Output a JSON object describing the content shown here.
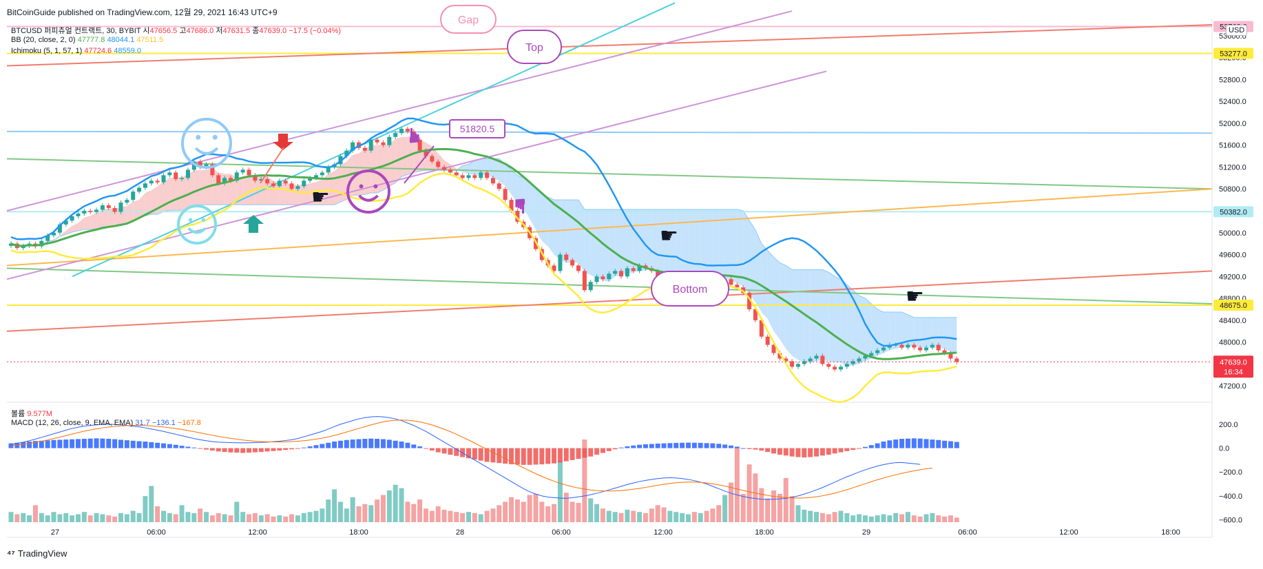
{
  "header": {
    "published_line": "BitCoinGuide published on TradingView.com, 12월 29, 2021 16:43 UTC+9",
    "symbol": "BTCUSD 퍼피츄얼 컨트랙트, 30, BYBIT",
    "o_label": "시",
    "o_value": "47656.5",
    "h_label": "고",
    "h_value": "47686.0",
    "l_label": "저",
    "l_value": "47631.5",
    "c_label": "종",
    "c_value": "47639.0",
    "change": "−17.5 (−0.04%)",
    "bb_label": "BB (20, close, 2, 0)",
    "bb_mid": "47777.8",
    "bb_up": "48044.1",
    "bb_low": "47511.5",
    "ichi_label": "Ichimoku (5, 1, 57, 1)",
    "ichi_a": "47724.6",
    "ichi_b": "48559.0",
    "currency": "USD"
  },
  "lower_legend": {
    "volume_label": "볼륨",
    "volume_value": "9.577M",
    "macd_label": "MACD (12, 26, close, 9, EMA, EMA)",
    "macd_hist": "31.7",
    "macd_line": "−136.1",
    "macd_signal": "−167.8"
  },
  "footer": {
    "brand": "TradingView"
  },
  "annotations": {
    "gap": "Gap",
    "top": "Top",
    "bottom": "Bottom",
    "price_callout": "51820.5"
  },
  "price_tags": [
    {
      "value": "53768.0",
      "color": "#f8bbd0",
      "text_color": "#131722"
    },
    {
      "value": "53277.0",
      "color": "#ffeb3b",
      "text_color": "#131722"
    },
    {
      "value": "50382.0",
      "color": "#b2ebf2",
      "text_color": "#131722"
    },
    {
      "value": "48675.0",
      "color": "#ffeb3b",
      "text_color": "#131722"
    }
  ],
  "last_price": {
    "value": "47639.0",
    "countdown": "16:34",
    "color": "#f23645"
  },
  "colors": {
    "up": "#26a69a",
    "down": "#ef5350",
    "bb_mid": "#4caf50",
    "bb_up": "#2196f3",
    "bb_low": "#ffeb3b",
    "cloud_up": "#bbdefb",
    "cloud_down": "#f8c5c5",
    "vol_up": "#80cbc4",
    "vol_down": "#f5a3a3",
    "macd_up": "#2962ff",
    "macd_down": "#ef5350"
  },
  "chart_data": [
    {
      "type": "candlestick",
      "name": "price",
      "ylim": [
        46900,
        53900
      ],
      "y_ticks": [
        "53600.0",
        "53200.0",
        "52800.0",
        "52400.0",
        "52000.0",
        "51600.0",
        "51200.0",
        "50800.0",
        "50400.0",
        "50000.0",
        "49600.0",
        "49200.0",
        "48800.0",
        "48400.0",
        "48000.0",
        "47600.0",
        "47200.0"
      ],
      "x_ticks": [
        "27",
        "06:00",
        "12:00",
        "18:00",
        "28",
        "06:00",
        "12:00",
        "18:00",
        "29",
        "06:00",
        "12:00",
        "18:00"
      ],
      "start": "2021-12-26T21:00",
      "interval_minutes": 30,
      "close": [
        49800,
        49720,
        49760,
        49800,
        49750,
        49850,
        49950,
        50000,
        50150,
        50220,
        50300,
        50350,
        50400,
        50380,
        50420,
        50500,
        50450,
        50380,
        50550,
        50600,
        50750,
        50820,
        50900,
        50950,
        50920,
        51050,
        51100,
        50980,
        51000,
        51150,
        51300,
        51200,
        51250,
        51050,
        50900,
        51000,
        50950,
        51100,
        51150,
        51050,
        50950,
        50980,
        50900,
        50850,
        50950,
        50900,
        50800,
        50850,
        50950,
        51000,
        51050,
        51100,
        51200,
        51250,
        51400,
        51500,
        51650,
        51550,
        51500,
        51700,
        51650,
        51600,
        51750,
        51820,
        51900,
        51850,
        51700,
        51500,
        51400,
        51300,
        51200,
        51150,
        51100,
        51050,
        51000,
        51050,
        51000,
        51100,
        51000,
        50900,
        50800,
        50600,
        50400,
        50200,
        50100,
        49900,
        49700,
        49500,
        49400,
        49300,
        49600,
        49500,
        49400,
        49300,
        48950,
        49100,
        49200,
        49150,
        49250,
        49300,
        49200,
        49350,
        49300,
        49400,
        49350,
        49300,
        49150,
        49050,
        49100,
        49150,
        49200,
        49250,
        49200,
        49250,
        49200,
        49150,
        49100,
        49150,
        49050,
        49000,
        48900,
        48600,
        48400,
        48100,
        47950,
        47800,
        47700,
        47650,
        47550,
        47600,
        47650,
        47700,
        47750,
        47600,
        47550,
        47500,
        47550,
        47600,
        47650,
        47700,
        47750,
        47800,
        47850,
        47900,
        47950,
        47950,
        47900,
        47950,
        47900,
        47850,
        47900,
        47950,
        47850,
        47800,
        47700,
        47639
      ],
      "volume": [
        0.9,
        0.7,
        0.8,
        0.6,
        1.5,
        0.8,
        0.6,
        0.9,
        0.7,
        0.8,
        0.6,
        0.7,
        0.9,
        0.6,
        0.8,
        0.7,
        0.6,
        0.5,
        0.8,
        0.7,
        1.0,
        0.8,
        2.3,
        3.2,
        1.4,
        1.0,
        0.8,
        0.7,
        1.5,
        0.9,
        0.8,
        1.2,
        0.9,
        0.6,
        0.8,
        0.7,
        0.6,
        1.8,
        0.9,
        0.7,
        0.8,
        0.6,
        0.7,
        0.5,
        0.6,
        0.5,
        0.7,
        0.6,
        0.8,
        0.9,
        1.0,
        1.2,
        2.0,
        2.9,
        1.8,
        1.2,
        2.2,
        1.4,
        1.6,
        1.5,
        2.0,
        2.4,
        2.8,
        3.3,
        3.0,
        1.8,
        1.6,
        2.0,
        1.2,
        1.0,
        1.4,
        1.1,
        1.0,
        0.9,
        0.8,
        0.9,
        0.8,
        0.7,
        1.0,
        1.2,
        1.5,
        1.8,
        2.2,
        2.0,
        1.8,
        2.4,
        2.5,
        1.8,
        1.4,
        1.6,
        5.4,
        2.6,
        1.8,
        1.7,
        7.3,
        2.1,
        1.6,
        1.2,
        1.0,
        0.9,
        0.8,
        1.1,
        1.0,
        0.9,
        0.8,
        1.2,
        1.5,
        1.3,
        1.0,
        0.9,
        0.8,
        0.7,
        0.9,
        0.8,
        1.0,
        1.2,
        1.5,
        2.4,
        3.5,
        6.6,
        2.5,
        5.1,
        4.3,
        3.0,
        2.1,
        2.8,
        2.5,
        3.9,
        2.3,
        1.5,
        1.1,
        1.0,
        0.9,
        0.8,
        0.7,
        0.9,
        1.0,
        0.8,
        0.6,
        0.7,
        0.6,
        0.5,
        0.6,
        0.7,
        0.6,
        0.8,
        0.7,
        0.9,
        0.6,
        0.5,
        0.7,
        0.8,
        0.6,
        0.5,
        0.6,
        0.4
      ],
      "macd_hist": [
        40,
        45,
        50,
        55,
        60,
        62,
        65,
        68,
        70,
        72,
        74,
        76,
        78,
        80,
        82,
        80,
        78,
        75,
        70,
        66,
        62,
        58,
        55,
        50,
        45,
        40,
        34,
        28,
        20,
        12,
        5,
        -5,
        -12,
        -20,
        -28,
        -32,
        -36,
        -38,
        -40,
        -38,
        -35,
        -32,
        -28,
        -24,
        -20,
        -15,
        -10,
        -6,
        5,
        15,
        25,
        35,
        45,
        55,
        62,
        68,
        72,
        75,
        78,
        80,
        78,
        75,
        70,
        62,
        55,
        45,
        30,
        15,
        -5,
        -20,
        -35,
        -45,
        -55,
        -65,
        -75,
        -85,
        -95,
        -105,
        -115,
        -120,
        -125,
        -130,
        -135,
        -138,
        -140,
        -140,
        -138,
        -136,
        -132,
        -128,
        -120,
        -110,
        -100,
        -90,
        -80,
        -70,
        -55,
        -40,
        -25,
        -10,
        5,
        15,
        22,
        28,
        32,
        35,
        38,
        40,
        42,
        44,
        45,
        46,
        45,
        44,
        42,
        40,
        36,
        30,
        22,
        12,
        0,
        -8,
        -12,
        -20,
        -32,
        -45,
        -55,
        -62,
        -70,
        -75,
        -78,
        -75,
        -70,
        -62,
        -55,
        -45,
        -35,
        -25,
        -15,
        -5,
        10,
        25,
        40,
        55,
        65,
        72,
        78,
        80,
        82,
        80,
        76,
        72,
        68,
        62,
        58,
        52,
        45,
        40,
        35,
        31.7
      ],
      "macd_line": [
        30,
        40,
        50,
        62,
        75,
        90,
        105,
        120,
        135,
        150,
        165,
        175,
        185,
        190,
        195,
        198,
        200,
        198,
        195,
        190,
        185,
        178,
        170,
        160,
        150,
        140,
        128,
        116,
        104,
        92,
        80,
        70,
        62,
        55,
        50,
        48,
        46,
        45,
        44,
        45,
        46,
        48,
        50,
        54,
        58,
        64,
        70,
        80,
        95,
        110,
        125,
        140,
        160,
        180,
        200,
        215,
        230,
        245,
        255,
        262,
        265,
        262,
        255,
        245,
        230,
        210,
        190,
        165,
        140,
        110,
        80,
        50,
        20,
        -10,
        -40,
        -70,
        -100,
        -130,
        -160,
        -190,
        -220,
        -250,
        -280,
        -310,
        -340,
        -365,
        -385,
        -400,
        -410,
        -415,
        -418,
        -420,
        -415,
        -408,
        -400,
        -390,
        -378,
        -365,
        -350,
        -335,
        -320,
        -305,
        -292,
        -280,
        -270,
        -262,
        -255,
        -250,
        -248,
        -250,
        -255,
        -262,
        -272,
        -285,
        -300,
        -320,
        -340,
        -360,
        -378,
        -392,
        -405,
        -415,
        -422,
        -428,
        -430,
        -428,
        -425,
        -420,
        -412,
        -400,
        -385,
        -368,
        -350,
        -330,
        -308,
        -285,
        -262,
        -240,
        -220,
        -200,
        -182,
        -165,
        -150,
        -138,
        -128,
        -122,
        -120,
        -125,
        -130,
        -136.1
      ],
      "macd_signal": [
        20,
        25,
        32,
        40,
        48,
        58,
        68,
        80,
        92,
        105,
        118,
        130,
        142,
        152,
        162,
        170,
        177,
        182,
        186,
        189,
        190,
        190,
        189,
        186,
        182,
        177,
        171,
        164,
        156,
        147,
        138,
        128,
        118,
        108,
        98,
        90,
        82,
        75,
        68,
        63,
        58,
        55,
        53,
        52,
        52,
        53,
        55,
        58,
        62,
        68,
        75,
        84,
        94,
        106,
        120,
        135,
        150,
        165,
        180,
        195,
        208,
        220,
        228,
        233,
        235,
        233,
        228,
        220,
        208,
        194,
        177,
        158,
        138,
        116,
        92,
        68,
        42,
        16,
        -10,
        -36,
        -62,
        -88,
        -114,
        -140,
        -165,
        -190,
        -214,
        -237,
        -258,
        -277,
        -295,
        -310,
        -323,
        -334,
        -343,
        -350,
        -355,
        -358,
        -359,
        -358,
        -355,
        -350,
        -344,
        -337,
        -329,
        -320,
        -311,
        -303,
        -296,
        -290,
        -286,
        -284,
        -284,
        -287,
        -292,
        -299,
        -308,
        -318,
        -330,
        -342,
        -354,
        -366,
        -377,
        -387,
        -396,
        -404,
        -410,
        -414,
        -417,
        -418,
        -417,
        -413,
        -407,
        -399,
        -389,
        -377,
        -363,
        -348,
        -332,
        -315,
        -298,
        -281,
        -265,
        -250,
        -236,
        -223,
        -211,
        -200,
        -190,
        -181,
        -173,
        -167.8
      ]
    }
  ]
}
